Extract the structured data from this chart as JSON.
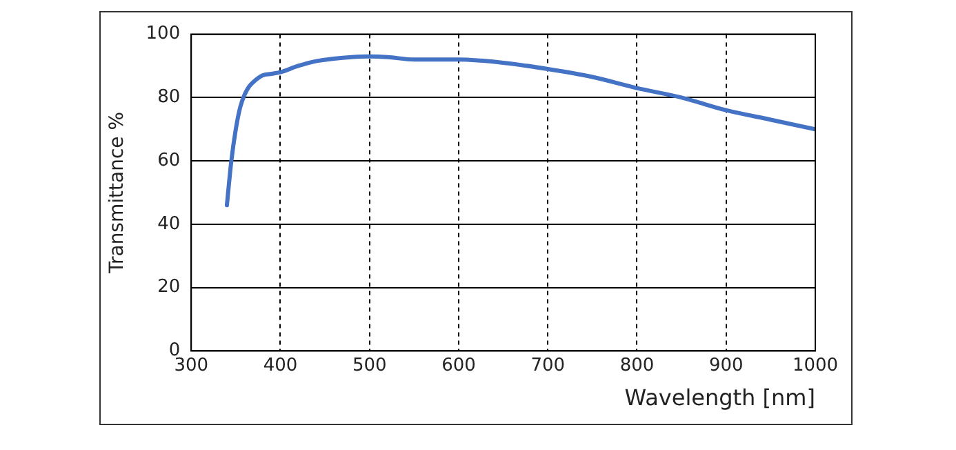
{
  "chart_data": {
    "type": "line",
    "xlabel": "Wavelength [nm]",
    "ylabel": "Transmittance %",
    "series": [
      {
        "color": "#4472c4",
        "x": [
          340,
          345,
          350,
          355,
          360,
          365,
          370,
          380,
          390,
          400,
          420,
          440,
          460,
          480,
          500,
          520,
          550,
          580,
          600,
          650,
          700,
          750,
          800,
          850,
          900,
          950,
          1000
        ],
        "values": [
          46,
          60,
          70,
          77,
          81,
          83.5,
          85,
          87,
          87.5,
          88,
          90,
          91.5,
          92.3,
          92.8,
          93,
          92.8,
          92,
          92,
          92,
          91,
          89,
          86.5,
          83,
          80,
          76,
          73,
          70
        ]
      }
    ],
    "xlim": [
      300,
      1000
    ],
    "xticks": [
      300,
      400,
      500,
      600,
      700,
      800,
      900,
      1000
    ],
    "ylim": [
      0,
      100
    ],
    "yticks": [
      0,
      20,
      40,
      60,
      80,
      100
    ],
    "grid": true,
    "marker": "none",
    "line_style": "solid",
    "legend": false
  }
}
